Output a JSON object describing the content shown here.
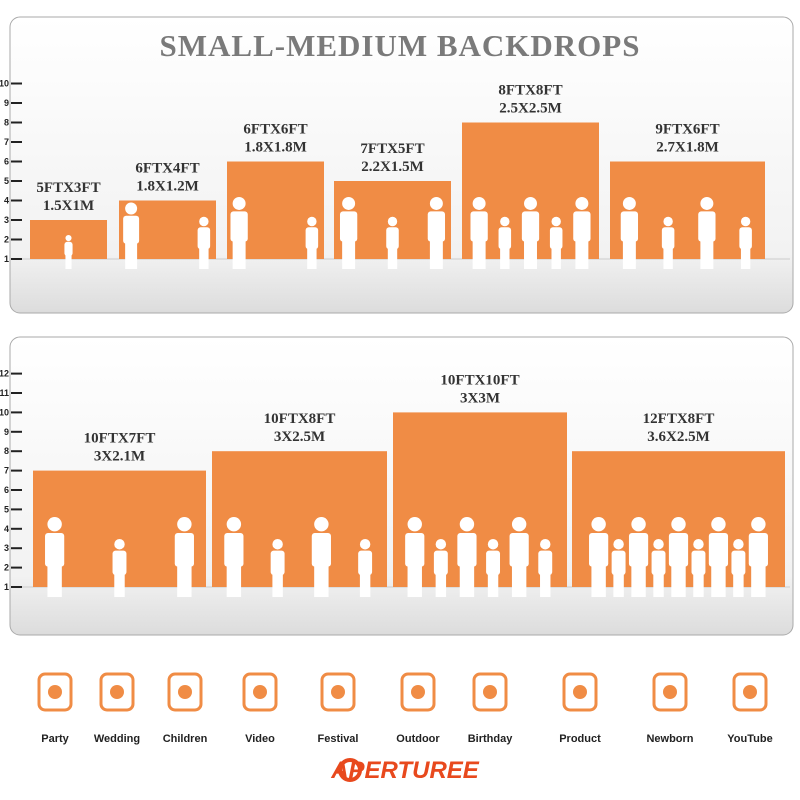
{
  "panels": [
    {
      "title": "SMALL-MEDIUM BACKDROPS",
      "scale": [
        1,
        2,
        3,
        4,
        5,
        6,
        7,
        8,
        9,
        10
      ],
      "backdrops": [
        {
          "feet": "5FTX3FT",
          "meters": "1.5X1M"
        },
        {
          "feet": "6FTX4FT",
          "meters": "1.8X1.2M"
        },
        {
          "feet": "6FTX6FT",
          "meters": "1.8X1.8M"
        },
        {
          "feet": "7FTX5FT",
          "meters": "2.2X1.5M"
        },
        {
          "feet": "8FTX8FT",
          "meters": "2.5X2.5M"
        },
        {
          "feet": "9FTX6FT",
          "meters": "2.7X1.8M"
        }
      ]
    },
    {
      "scale": [
        1,
        2,
        3,
        4,
        5,
        6,
        7,
        8,
        9,
        10,
        11,
        12
      ],
      "backdrops": [
        {
          "feet": "10FTX7FT",
          "meters": "3X2.1M"
        },
        {
          "feet": "10FTX8FT",
          "meters": "3X2.5M"
        },
        {
          "feet": "10FTX10FT",
          "meters": "3X3M"
        },
        {
          "feet": "12FTX8FT",
          "meters": "3.6X2.5M"
        }
      ]
    }
  ],
  "uses": [
    "Party",
    "Wedding",
    "Children",
    "Video",
    "Festival",
    "Outdoor",
    "Birthday",
    "Product",
    "Newborn",
    "YouTube"
  ],
  "brand": "APERTUREE"
}
